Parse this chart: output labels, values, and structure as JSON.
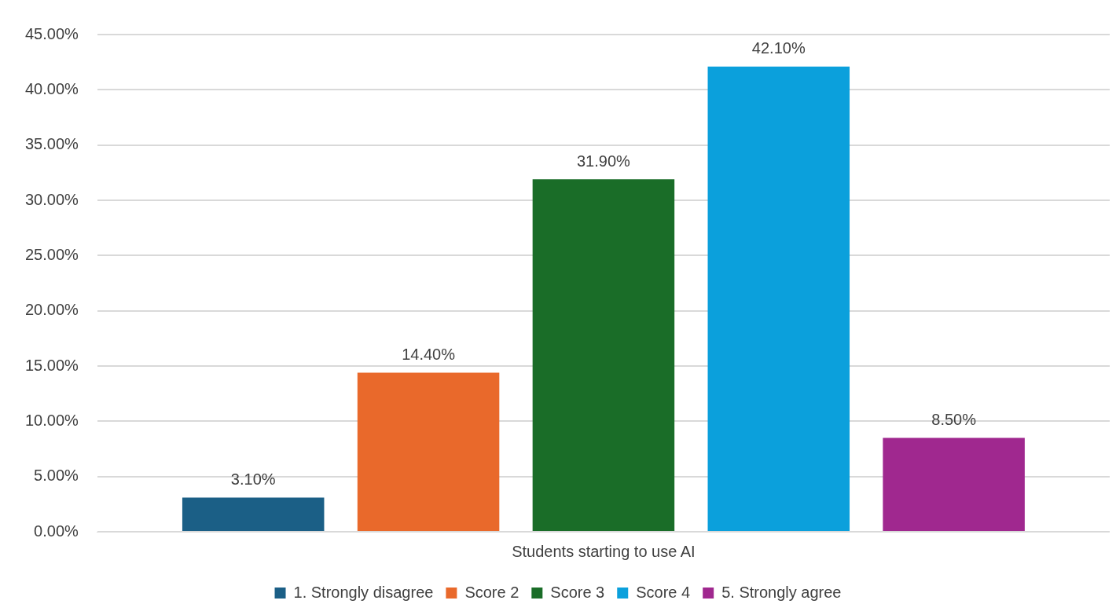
{
  "chart_data": {
    "type": "bar",
    "categories": [
      "Students starting to use AI"
    ],
    "series": [
      {
        "name": "1. Strongly disagree",
        "color": "#1b5f86",
        "values": [
          3.1
        ],
        "value_labels": [
          "3.10%"
        ]
      },
      {
        "name": "Score 2",
        "color": "#e9692b",
        "values": [
          14.4
        ],
        "value_labels": [
          "14.40%"
        ]
      },
      {
        "name": "Score 3",
        "color": "#1a6d28",
        "values": [
          31.9
        ],
        "value_labels": [
          "31.90%"
        ]
      },
      {
        "name": "Score 4",
        "color": "#0ba0dc",
        "values": [
          42.1
        ],
        "value_labels": [
          "42.10%"
        ]
      },
      {
        "name": "5. Strongly agree",
        "color": "#a0288f",
        "values": [
          8.5
        ],
        "value_labels": [
          "8.50%"
        ]
      }
    ],
    "ylim": [
      0,
      45
    ],
    "yticks": [
      {
        "value": 0,
        "label": "0.00%"
      },
      {
        "value": 5,
        "label": "5.00%"
      },
      {
        "value": 10,
        "label": "10.00%"
      },
      {
        "value": 15,
        "label": "15.00%"
      },
      {
        "value": 20,
        "label": "20.00%"
      },
      {
        "value": 25,
        "label": "25.00%"
      },
      {
        "value": 30,
        "label": "30.00%"
      },
      {
        "value": 35,
        "label": "35.00%"
      },
      {
        "value": 40,
        "label": "40.00%"
      },
      {
        "value": 45,
        "label": "45.00%"
      }
    ],
    "grid": "y",
    "legend": "bottom"
  }
}
